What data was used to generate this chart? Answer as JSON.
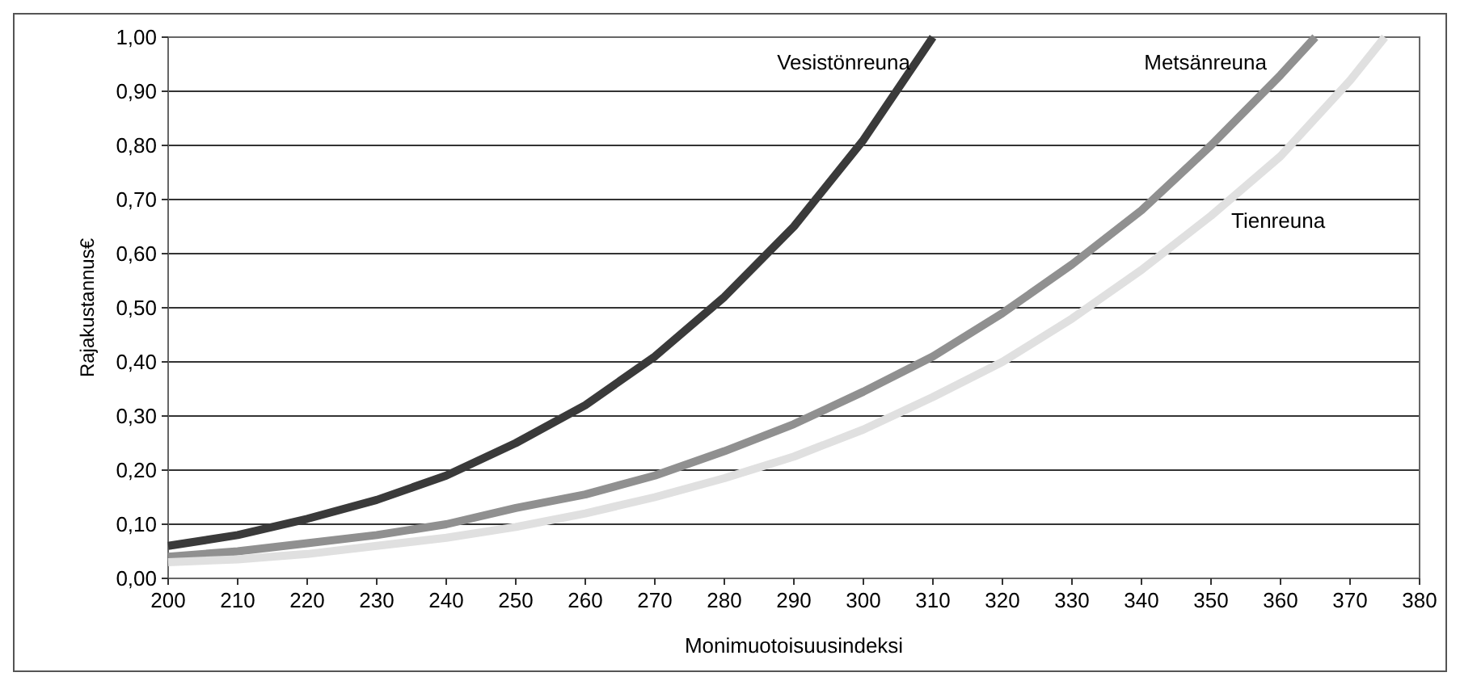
{
  "chart_data": {
    "type": "line",
    "xlabel": "Monimuotoisuusindeksi",
    "ylabel": "Rajakustannus€",
    "xlim": [
      200,
      380
    ],
    "xticks": [
      200,
      210,
      220,
      230,
      240,
      250,
      260,
      270,
      280,
      290,
      300,
      310,
      320,
      330,
      340,
      350,
      360,
      370,
      380
    ],
    "ylim": [
      0,
      1
    ],
    "yticks": [
      {
        "value": 0,
        "label": "0,00"
      },
      {
        "value": 0.1,
        "label": "0,10"
      },
      {
        "value": 0.2,
        "label": "0,20"
      },
      {
        "value": 0.3,
        "label": "0,30"
      },
      {
        "value": 0.4,
        "label": "0,40"
      },
      {
        "value": 0.5,
        "label": "0,50"
      },
      {
        "value": 0.6,
        "label": "0,60"
      },
      {
        "value": 0.7,
        "label": "0,70"
      },
      {
        "value": 0.8,
        "label": "0,80"
      },
      {
        "value": 0.9,
        "label": "0,90"
      },
      {
        "value": 1,
        "label": "1,00"
      }
    ],
    "grid": "y",
    "marker": "none",
    "line_style": "solid",
    "series": [
      {
        "name": "Vesistönreuna",
        "color": "#3a3a3a",
        "x": [
          200,
          210,
          220,
          230,
          240,
          250,
          260,
          270,
          280,
          290,
          300,
          310
        ],
        "values": [
          0.06,
          0.08,
          0.11,
          0.145,
          0.19,
          0.25,
          0.32,
          0.41,
          0.52,
          0.65,
          0.81,
          1.0
        ]
      },
      {
        "name": "Metsänreuna",
        "color": "#909090",
        "x": [
          200,
          210,
          220,
          230,
          240,
          250,
          260,
          270,
          280,
          290,
          300,
          310,
          320,
          330,
          340,
          350,
          360,
          365
        ],
        "values": [
          0.04,
          0.05,
          0.065,
          0.08,
          0.1,
          0.13,
          0.155,
          0.19,
          0.235,
          0.285,
          0.345,
          0.41,
          0.49,
          0.58,
          0.68,
          0.8,
          0.93,
          1.0
        ]
      },
      {
        "name": "Tienreuna",
        "color": "#e0e0e0",
        "x": [
          200,
          210,
          220,
          230,
          240,
          250,
          260,
          270,
          280,
          290,
          300,
          310,
          320,
          330,
          340,
          350,
          360,
          370,
          375
        ],
        "values": [
          0.03,
          0.035,
          0.045,
          0.06,
          0.075,
          0.095,
          0.12,
          0.15,
          0.185,
          0.225,
          0.275,
          0.335,
          0.4,
          0.48,
          0.57,
          0.67,
          0.78,
          0.92,
          1.0
        ]
      }
    ]
  }
}
